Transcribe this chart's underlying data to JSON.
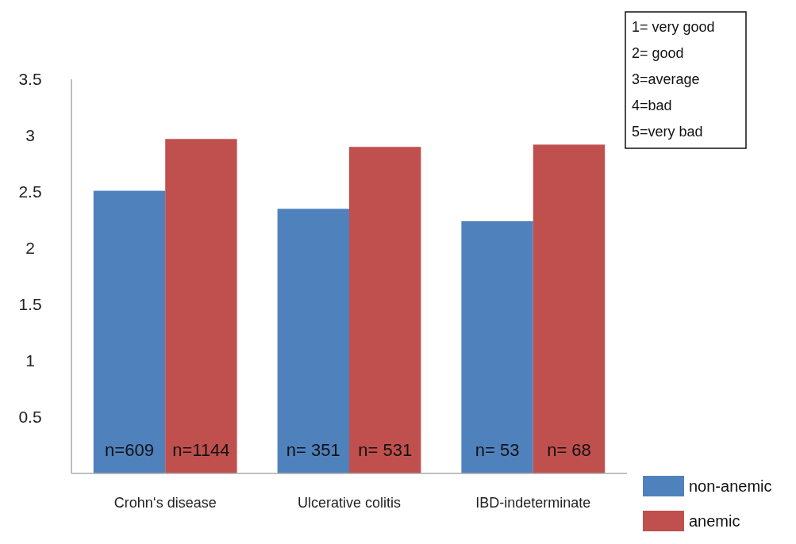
{
  "chart_data": {
    "type": "bar",
    "categories": [
      "Crohn‘s disease",
      "Ulcerative colitis",
      "IBD-indeterminate"
    ],
    "series": [
      {
        "name": "non-anemic",
        "color": "#4f81bd",
        "values": [
          2.51,
          2.35,
          2.24
        ]
      },
      {
        "name": "anemic",
        "color": "#c0504d",
        "values": [
          2.97,
          2.9,
          2.92
        ]
      }
    ],
    "ylim": [
      0,
      3.5
    ],
    "yticks": [
      0.5,
      1,
      1.5,
      2,
      2.5,
      3,
      3.5
    ],
    "grid": false,
    "legend": "bottom right",
    "annotations": [
      "n=609",
      "n=1144",
      "n= 351",
      "n= 531",
      "n= 53",
      "n= 68",
      "1= very good",
      "2= good",
      "3=average",
      "4=bad",
      "5=very bad"
    ]
  }
}
